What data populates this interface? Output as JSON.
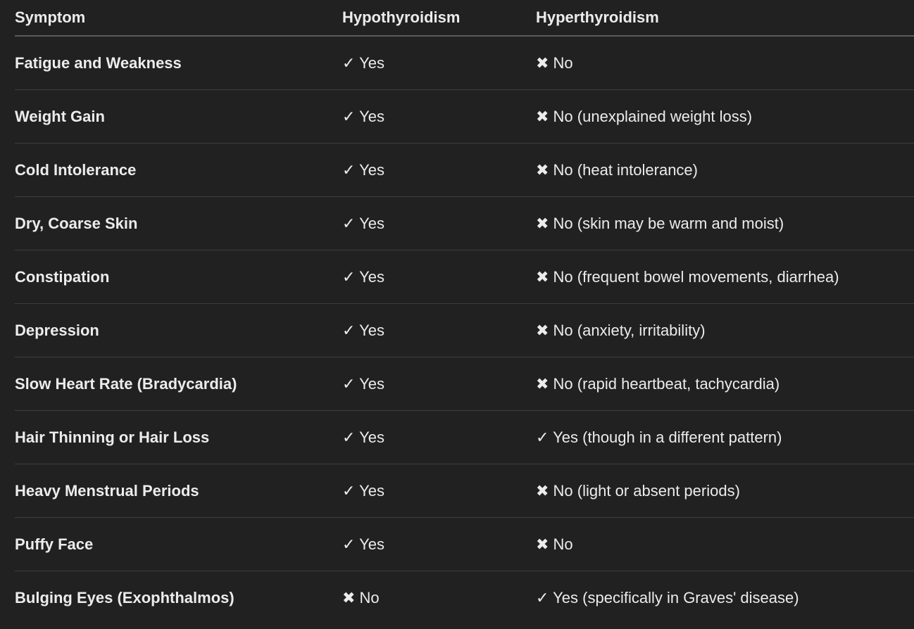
{
  "headers": [
    "Symptom",
    "Hypothyroidism",
    "Hyperthyroidism"
  ],
  "rows": [
    [
      "Fatigue and Weakness",
      "✓ Yes",
      "✖ No"
    ],
    [
      "Weight Gain",
      "✓ Yes",
      "✖ No (unexplained weight loss)"
    ],
    [
      "Cold Intolerance",
      "✓ Yes",
      "✖ No (heat intolerance)"
    ],
    [
      "Dry, Coarse Skin",
      "✓ Yes",
      "✖ No (skin may be warm and moist)"
    ],
    [
      "Constipation",
      "✓ Yes",
      "✖ No (frequent bowel movements, diarrhea)"
    ],
    [
      "Depression",
      "✓ Yes",
      "✖ No (anxiety, irritability)"
    ],
    [
      "Slow Heart Rate (Bradycardia)",
      "✓ Yes",
      "✖ No (rapid heartbeat, tachycardia)"
    ],
    [
      "Hair Thinning or Hair Loss",
      "✓ Yes",
      "✓ Yes (though in a different pattern)"
    ],
    [
      "Heavy Menstrual Periods",
      "✓ Yes",
      "✖ No (light or absent periods)"
    ],
    [
      "Puffy Face",
      "✓ Yes",
      "✖ No"
    ],
    [
      "Bulging Eyes (Exophthalmos)",
      "✖ No",
      "✓ Yes (specifically in Graves' disease)"
    ]
  ]
}
